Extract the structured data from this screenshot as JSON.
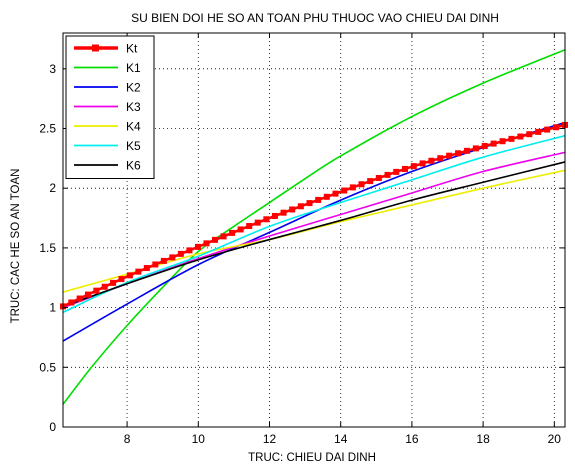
{
  "chart_data": {
    "type": "line",
    "title": "SU BIEN DOI HE SO AN TOAN PHU THUOC VAO CHIEU DAI DINH",
    "xlabel": "TRUC: CHIEU DAI DINH",
    "ylabel": "TRUC: CAC HE SO AN TOAN",
    "xlim": [
      6.2,
      20.3
    ],
    "ylim": [
      0,
      3.3
    ],
    "xticks": [
      8,
      10,
      12,
      14,
      16,
      18,
      20
    ],
    "yticks": [
      0,
      0.5,
      1,
      1.5,
      2,
      2.5,
      3
    ],
    "grid": true,
    "legend_position": "top-left",
    "series": [
      {
        "name": "Kt",
        "color": "#ff0000",
        "marker": "square",
        "x": [
          6.2,
          8,
          10,
          12,
          14,
          16,
          18,
          20.3
        ],
        "y": [
          1.01,
          1.26,
          1.51,
          1.75,
          1.97,
          2.18,
          2.35,
          2.53
        ]
      },
      {
        "name": "K1",
        "color": "#00dd00",
        "x": [
          6.2,
          7,
          8,
          9,
          10,
          11,
          12,
          13,
          14,
          16,
          18,
          20.3
        ],
        "y": [
          0.19,
          0.5,
          0.85,
          1.17,
          1.47,
          1.68,
          1.88,
          2.08,
          2.27,
          2.6,
          2.88,
          3.16
        ]
      },
      {
        "name": "K2",
        "color": "#0000ee",
        "x": [
          6.2,
          8,
          10,
          12,
          14,
          16,
          18,
          20.3
        ],
        "y": [
          0.72,
          1.03,
          1.36,
          1.63,
          1.9,
          2.14,
          2.34,
          2.55
        ]
      },
      {
        "name": "K3",
        "color": "#ee00ee",
        "x": [
          6.2,
          8,
          10,
          12,
          14,
          16,
          18,
          20.3
        ],
        "y": [
          1.0,
          1.2,
          1.41,
          1.6,
          1.78,
          1.96,
          2.14,
          2.3
        ]
      },
      {
        "name": "K4",
        "color": "#eeee00",
        "x": [
          6.2,
          8,
          10,
          12,
          14,
          16,
          18,
          20.3
        ],
        "y": [
          1.13,
          1.28,
          1.45,
          1.57,
          1.72,
          1.86,
          2.0,
          2.15
        ]
      },
      {
        "name": "K5",
        "color": "#00eeee",
        "x": [
          6.2,
          8,
          10,
          12,
          14,
          16,
          18,
          20.3
        ],
        "y": [
          0.96,
          1.21,
          1.43,
          1.68,
          1.88,
          2.07,
          2.26,
          2.44
        ]
      },
      {
        "name": "K6",
        "color": "#000000",
        "x": [
          6.2,
          8,
          10,
          12,
          14,
          16,
          18,
          20.3
        ],
        "y": [
          1.01,
          1.2,
          1.4,
          1.57,
          1.73,
          1.9,
          2.05,
          2.22
        ]
      }
    ]
  }
}
